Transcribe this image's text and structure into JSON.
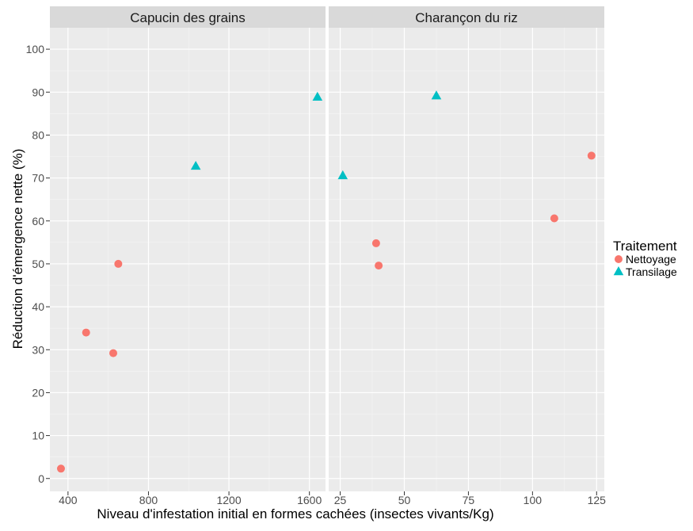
{
  "chart_data": {
    "type": "scatter",
    "xlabel": "Niveau d'infestation initial en formes cachées (insectes vivants/Kg)",
    "ylabel": "Réduction d'émergence nette (%)",
    "ylim": [
      -3,
      105
    ],
    "yticks": [
      0,
      10,
      20,
      30,
      40,
      50,
      60,
      70,
      80,
      90,
      100
    ],
    "grid": true,
    "legend": {
      "title": "Traitement",
      "placement": "right",
      "entries": [
        {
          "name": "Nettoyage",
          "color": "#F8766D",
          "shape": "circle"
        },
        {
          "name": "Transilage",
          "color": "#00BFC4",
          "shape": "triangle"
        }
      ]
    },
    "panels": [
      {
        "title": "Capucin des grains",
        "xlim": [
          310,
          1680
        ],
        "xticks": [
          400,
          800,
          1200,
          1600
        ],
        "series": [
          {
            "name": "Nettoyage",
            "points": [
              [
                365,
                2.3
              ],
              [
                490,
                34
              ],
              [
                625,
                29.2
              ],
              [
                650,
                50
              ]
            ]
          },
          {
            "name": "Transilage",
            "points": [
              [
                1035,
                72.7
              ],
              [
                1640,
                88.8
              ]
            ]
          }
        ]
      },
      {
        "title": "Charançon du riz",
        "xlim": [
          20.5,
          128
        ],
        "xticks": [
          25,
          50,
          75,
          100,
          125
        ],
        "series": [
          {
            "name": "Nettoyage",
            "points": [
              [
                39,
                54.8
              ],
              [
                40,
                49.6
              ],
              [
                108.5,
                60.6
              ],
              [
                123,
                75.2
              ]
            ]
          },
          {
            "name": "Transilage",
            "points": [
              [
                26,
                70.5
              ],
              [
                62.5,
                89.1
              ]
            ]
          }
        ]
      }
    ]
  }
}
